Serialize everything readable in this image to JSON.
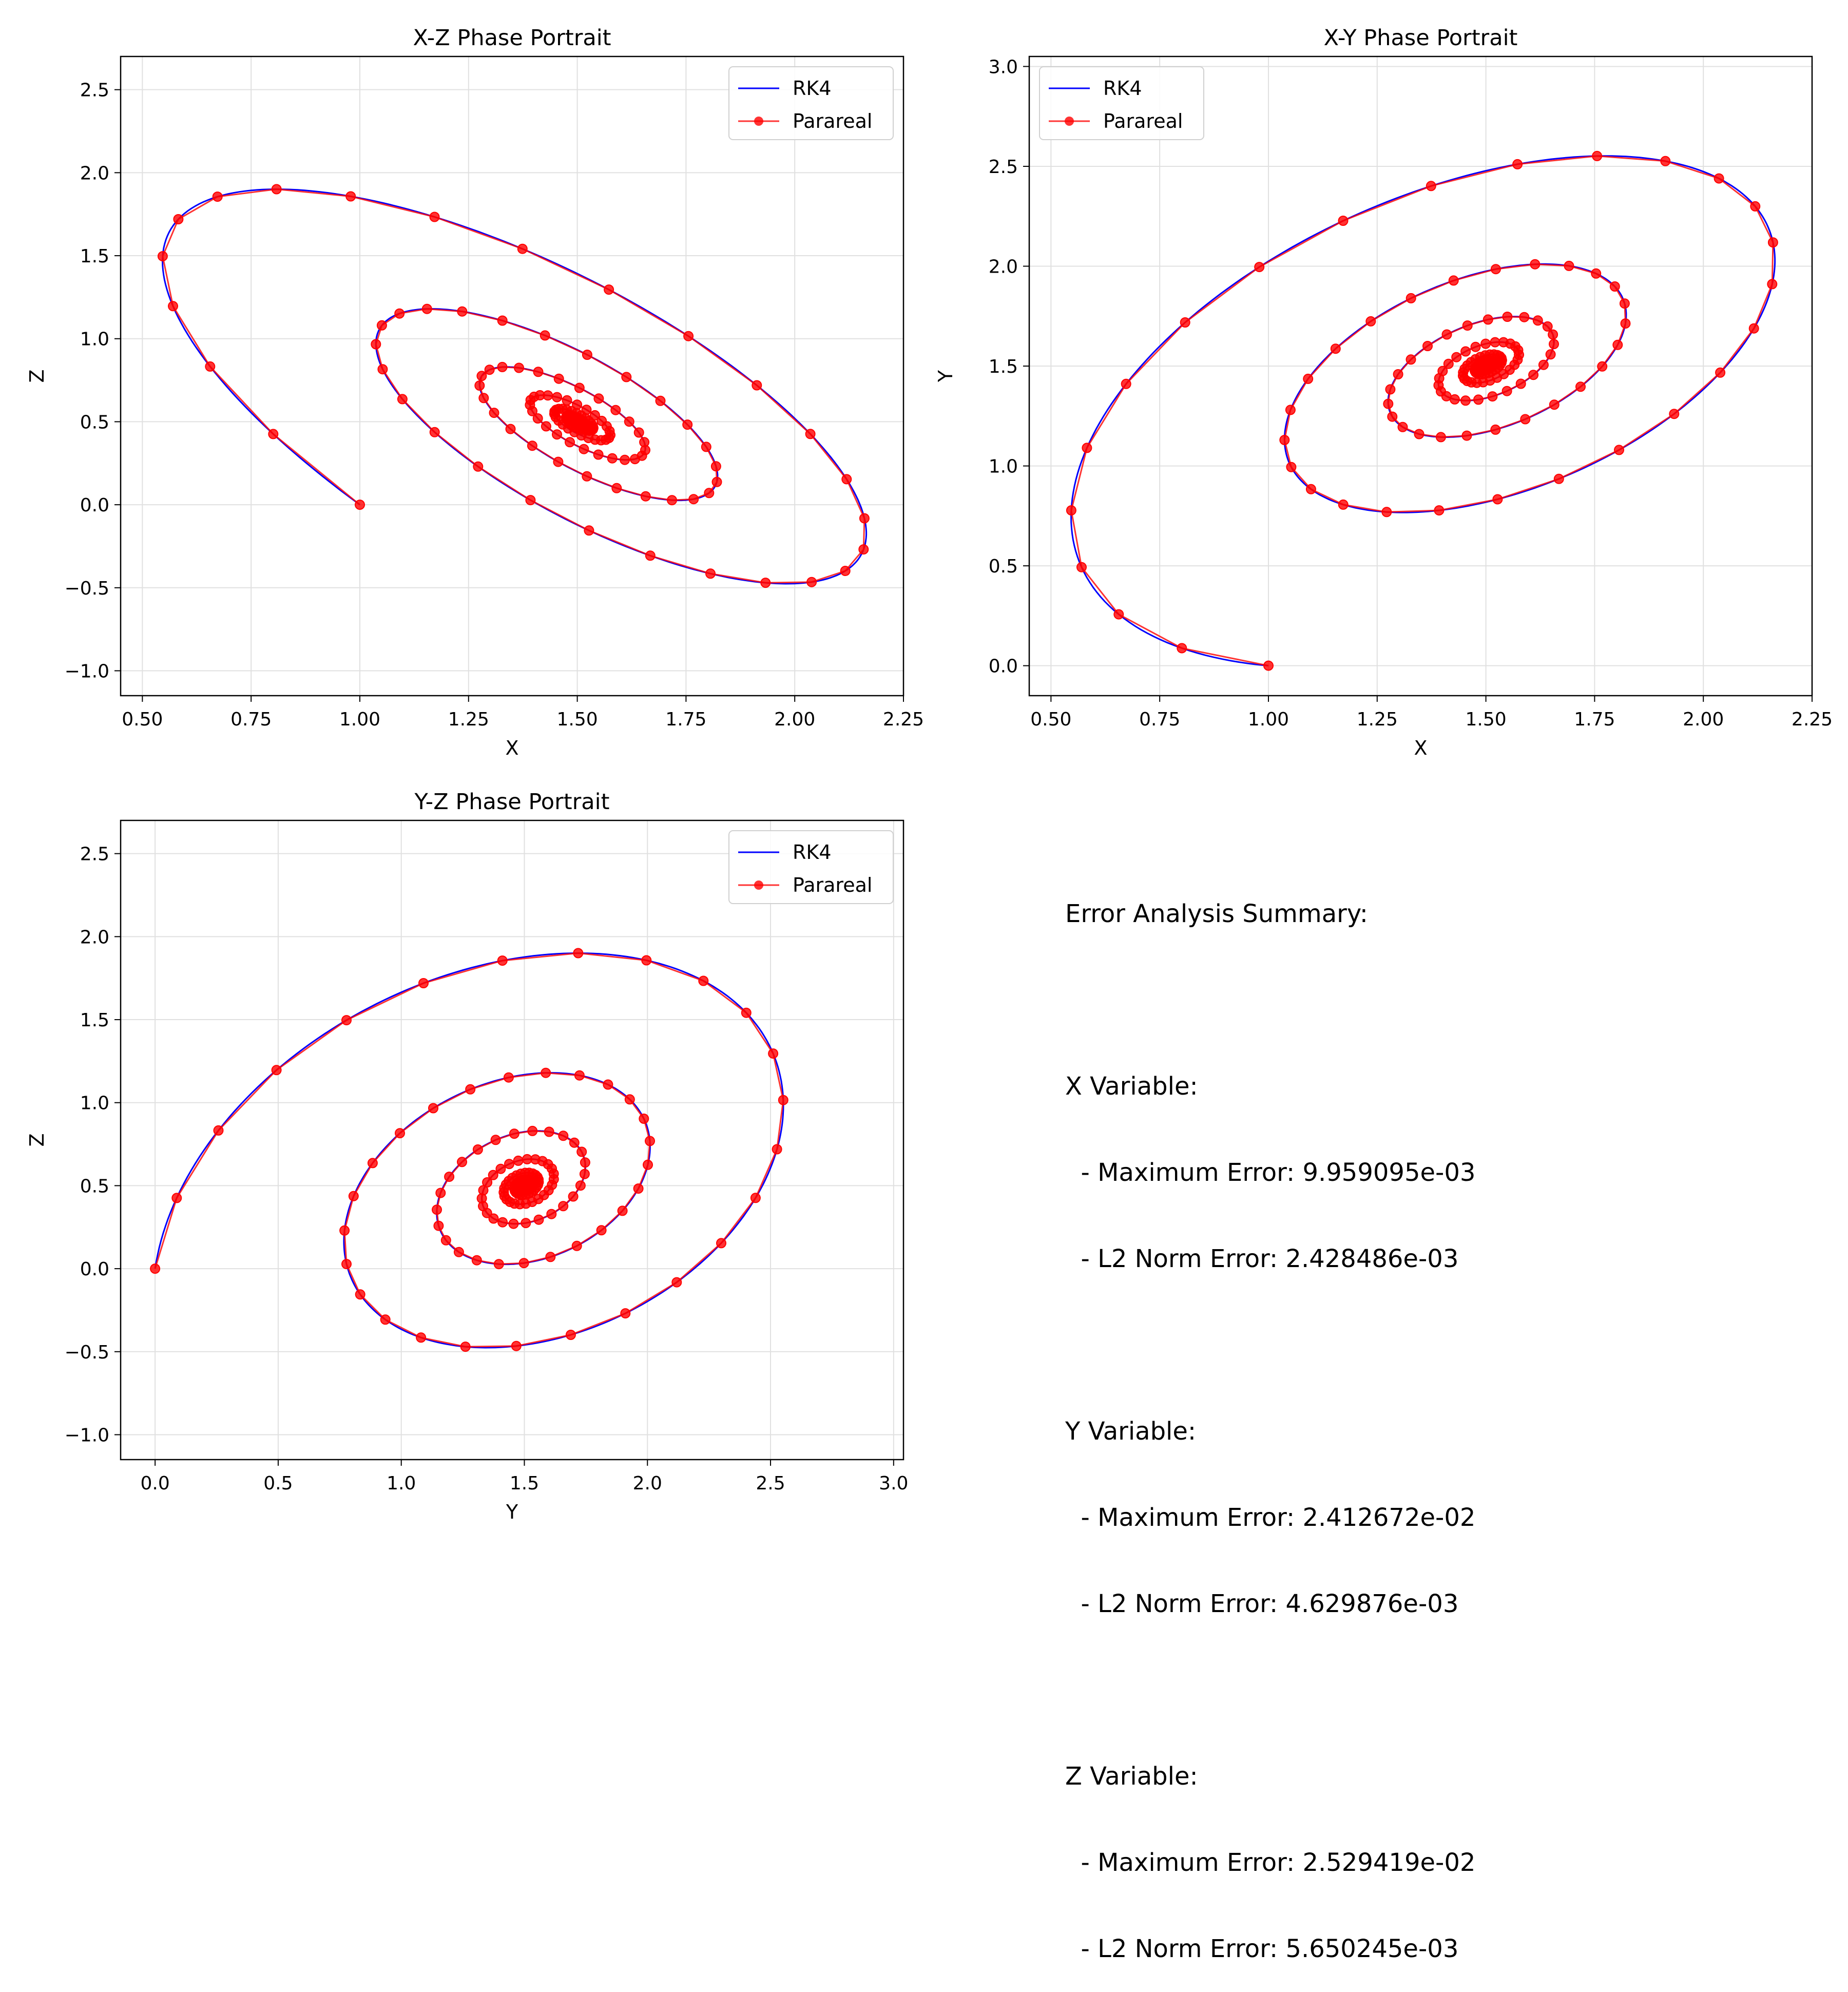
{
  "summary": {
    "title": "Error Analysis Summary:",
    "blocks": [
      {
        "heading": "X Variable:",
        "max": "  - Maximum Error: 9.959095e-03",
        "l2": "  - L2 Norm Error: 2.428486e-03"
      },
      {
        "heading": "Y Variable:",
        "max": "  - Maximum Error: 2.412672e-02",
        "l2": "  - L2 Norm Error: 4.629876e-03"
      },
      {
        "heading": "Z Variable:",
        "max": "  - Maximum Error: 2.529419e-02",
        "l2": "  - L2 Norm Error: 5.650245e-03"
      }
    ]
  },
  "chart_data": [
    {
      "type": "line",
      "title": "X-Z Phase Portrait",
      "xlabel": "X",
      "ylabel": "Z",
      "xlim": [
        0.45,
        2.25
      ],
      "ylim": [
        -1.15,
        2.7
      ],
      "xticks": [
        "0.50",
        "0.75",
        "1.00",
        "1.25",
        "1.50",
        "1.75",
        "2.00",
        "2.25"
      ],
      "yticks": [
        "-1.0",
        "-0.5",
        "0.0",
        "0.5",
        "1.0",
        "1.5",
        "2.0",
        "2.5"
      ],
      "grid": true,
      "legend": "top-right",
      "series": [
        {
          "name": "RK4",
          "color": "#0000ff",
          "marker": "none",
          "system": "brusselator_x_z"
        },
        {
          "name": "Parareal",
          "color": "#ff0000",
          "marker": "circle",
          "system": "brusselator_x_z"
        }
      ],
      "initial_point": [
        1.0,
        0.0
      ],
      "equilibrium": [
        1.5,
        0.5
      ]
    },
    {
      "type": "line",
      "title": "X-Y Phase Portrait",
      "xlabel": "X",
      "ylabel": "Y",
      "xlim": [
        0.45,
        2.25
      ],
      "ylim": [
        -0.15,
        3.05
      ],
      "xticks": [
        "0.50",
        "0.75",
        "1.00",
        "1.25",
        "1.50",
        "1.75",
        "2.00",
        "2.25"
      ],
      "yticks": [
        "0.0",
        "0.5",
        "1.0",
        "1.5",
        "2.0",
        "2.5",
        "3.0"
      ],
      "grid": true,
      "legend": "top-left",
      "series": [
        {
          "name": "RK4",
          "color": "#0000ff",
          "marker": "none",
          "system": "brusselator_x_y"
        },
        {
          "name": "Parareal",
          "color": "#ff0000",
          "marker": "circle",
          "system": "brusselator_x_y"
        }
      ],
      "initial_point": [
        1.0,
        0.0
      ],
      "equilibrium": [
        1.5,
        1.5
      ]
    },
    {
      "type": "line",
      "title": "Y-Z Phase Portrait",
      "xlabel": "Y",
      "ylabel": "Z",
      "xlim": [
        -0.14,
        3.04
      ],
      "ylim": [
        -1.15,
        2.7
      ],
      "xticks": [
        "0.0",
        "0.5",
        "1.0",
        "1.5",
        "2.0",
        "2.5",
        "3.0"
      ],
      "yticks": [
        "-1.0",
        "-0.5",
        "0.0",
        "0.5",
        "1.0",
        "1.5",
        "2.0",
        "2.5"
      ],
      "grid": true,
      "legend": "top-right",
      "series": [
        {
          "name": "RK4",
          "color": "#0000ff",
          "marker": "none",
          "system": "brusselator_y_z"
        },
        {
          "name": "Parareal",
          "color": "#ff0000",
          "marker": "circle",
          "system": "brusselator_y_z"
        }
      ],
      "initial_point": [
        0.0,
        0.0
      ],
      "equilibrium": [
        1.5,
        0.5
      ]
    }
  ]
}
